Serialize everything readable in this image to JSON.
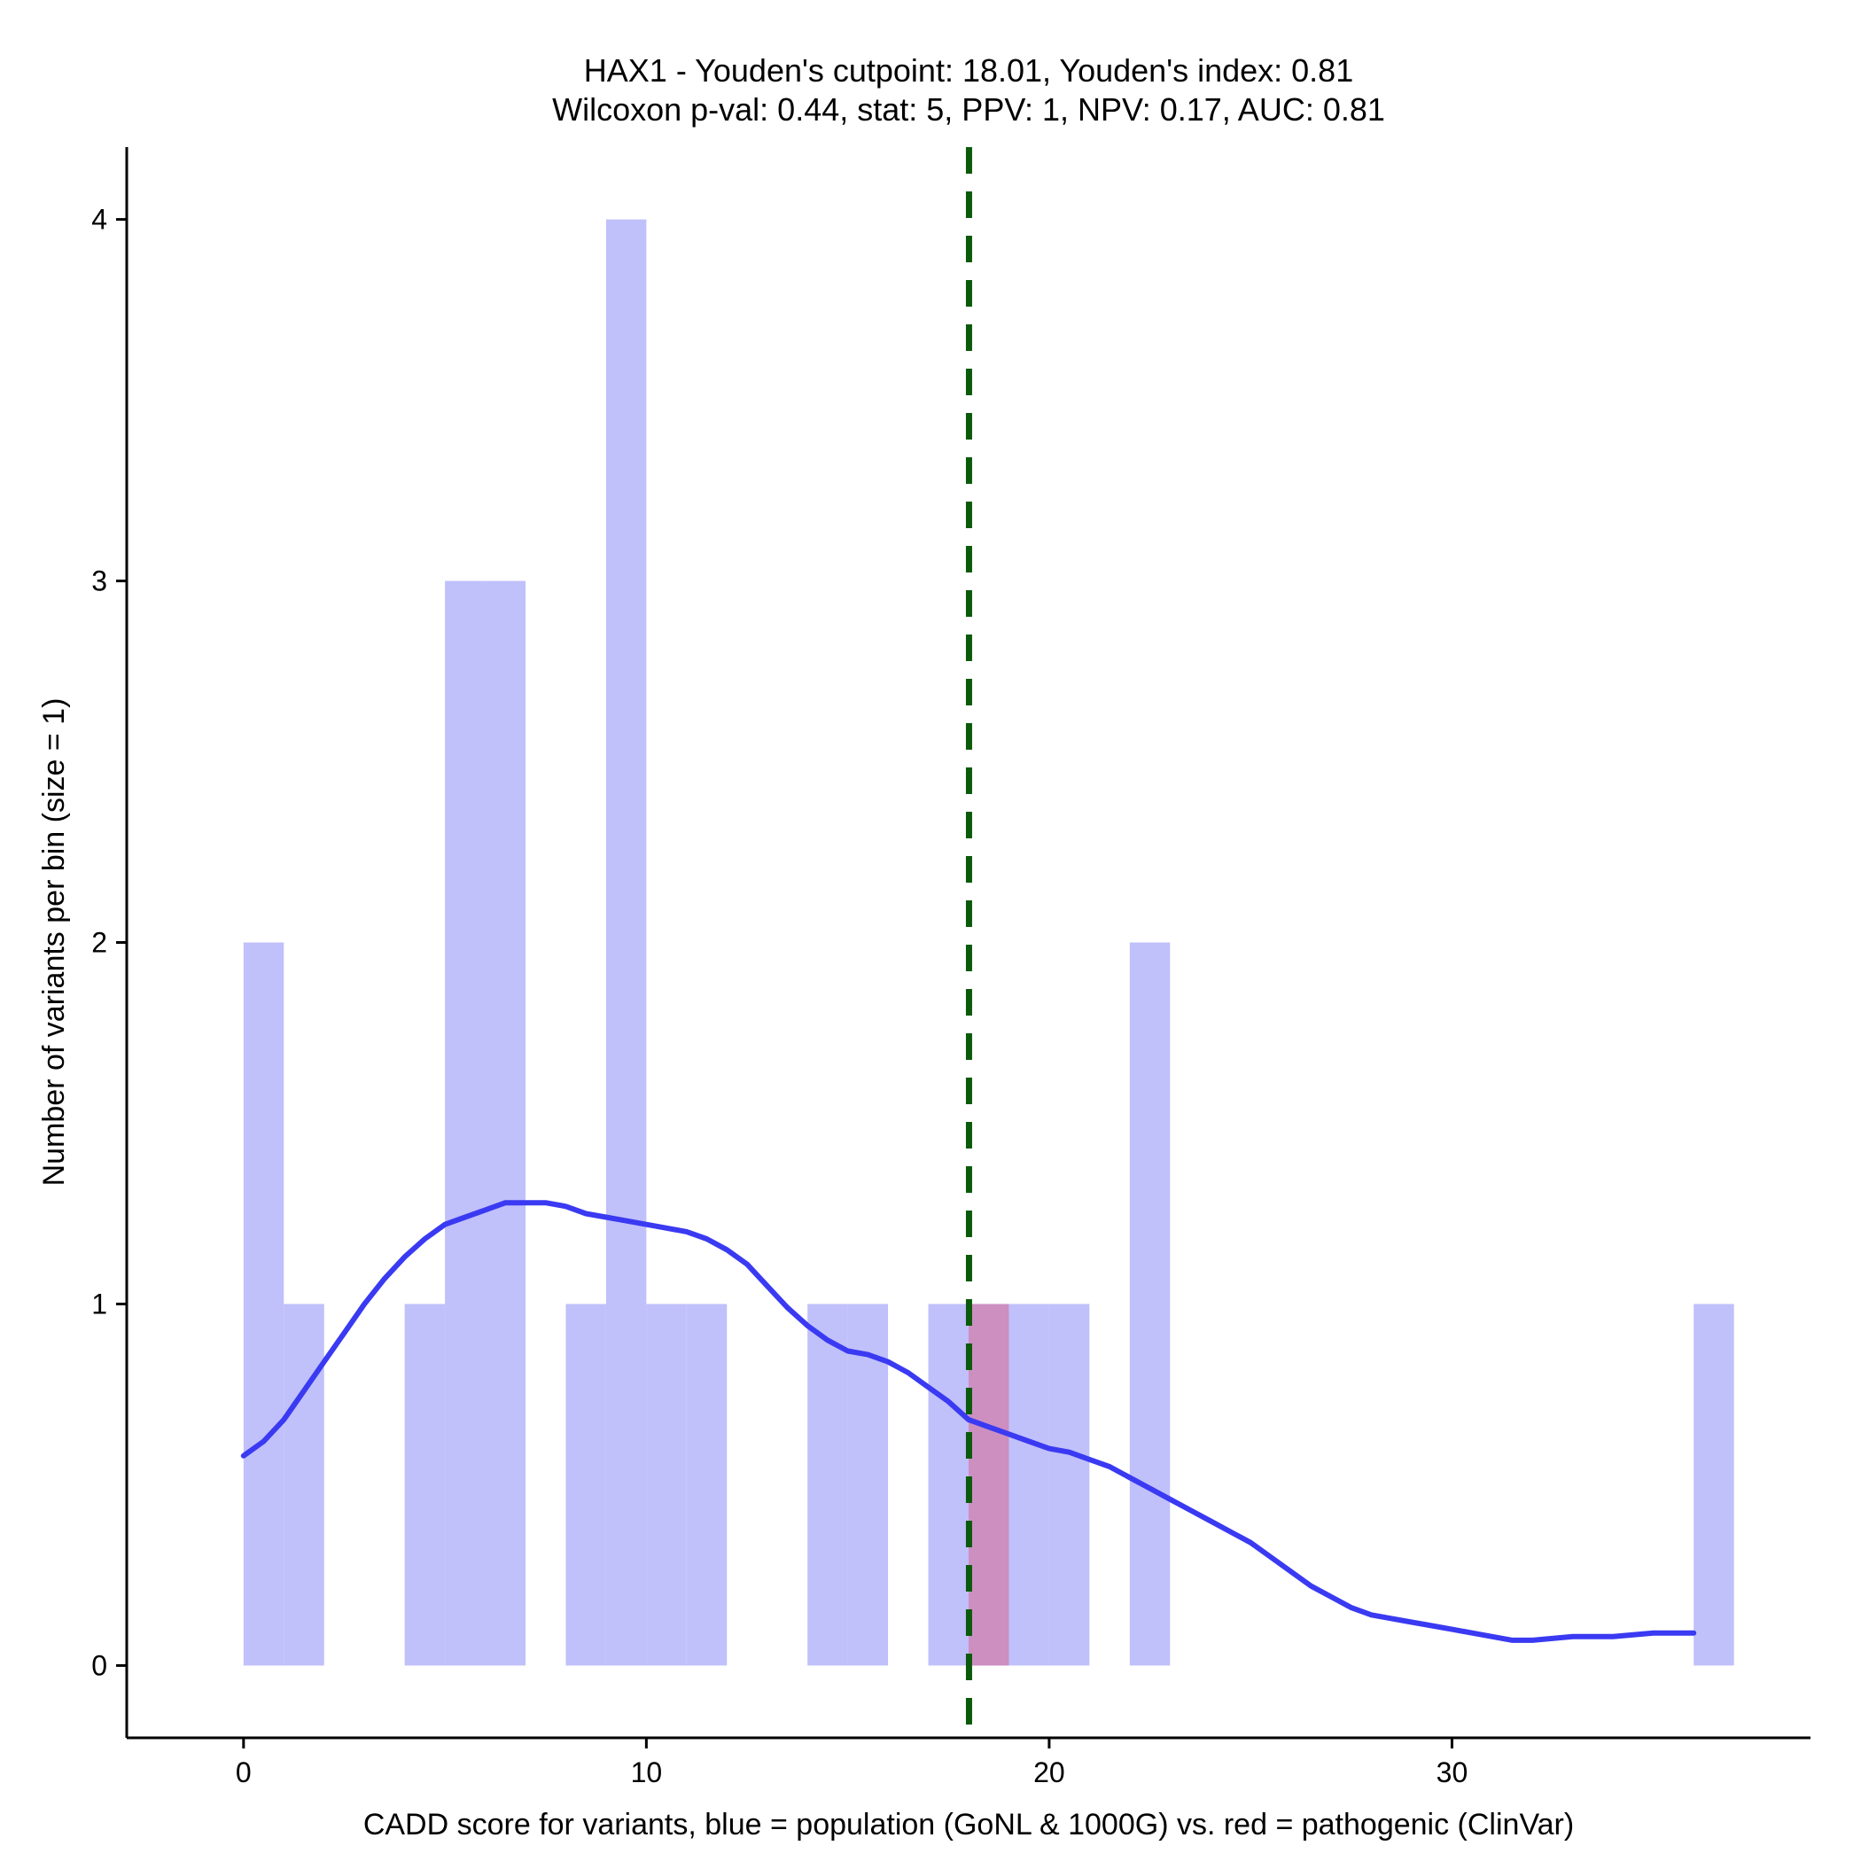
{
  "chart_data": {
    "type": "histogram",
    "title": "HAX1 - Youden's cutpoint: 18.01, Youden's index: 0.81",
    "subtitle": "Wilcoxon p-val: 0.44, stat: 5, PPV: 1, NPV: 0.17, AUC: 0.81",
    "xlabel": "CADD score for variants, blue = population (GoNL & 1000G) vs. red = pathogenic (ClinVar)",
    "ylabel": "Number of variants per bin (size = 1)",
    "xlim": [
      -2.9,
      38.9
    ],
    "ylim": [
      -0.2,
      4.2
    ],
    "x_ticks": [
      0,
      10,
      20,
      30
    ],
    "y_ticks": [
      0,
      1,
      2,
      3,
      4
    ],
    "bin_size": 1,
    "colors": {
      "population": "#c0c0fb",
      "pathogenic": "#cc8fc0",
      "density": "#3a3af2",
      "cutpoint": "#0b5a0b"
    },
    "cutpoint": 18.01,
    "series": [
      {
        "name": "population",
        "bins": [
          {
            "start": 0,
            "count": 2
          },
          {
            "start": 1,
            "count": 1
          },
          {
            "start": 4,
            "count": 1
          },
          {
            "start": 5,
            "count": 3
          },
          {
            "start": 6,
            "count": 3
          },
          {
            "start": 8,
            "count": 1
          },
          {
            "start": 9,
            "count": 4
          },
          {
            "start": 10,
            "count": 1
          },
          {
            "start": 11,
            "count": 1
          },
          {
            "start": 14,
            "count": 1
          },
          {
            "start": 15,
            "count": 1
          },
          {
            "start": 17,
            "count": 1
          },
          {
            "start": 18,
            "count": 1
          },
          {
            "start": 19,
            "count": 1
          },
          {
            "start": 20,
            "count": 1
          },
          {
            "start": 22,
            "count": 2
          },
          {
            "start": 36,
            "count": 1
          }
        ]
      },
      {
        "name": "pathogenic",
        "bins": [
          {
            "start": 18,
            "count": 1
          }
        ]
      }
    ],
    "density_curve": {
      "name": "population density",
      "x": [
        0,
        0.5,
        1,
        1.5,
        2,
        2.5,
        3,
        3.5,
        4,
        4.5,
        5,
        5.5,
        6,
        6.5,
        7,
        7.5,
        8,
        8.5,
        9,
        9.5,
        10,
        10.5,
        11,
        11.5,
        12,
        12.5,
        13,
        13.5,
        14,
        14.5,
        15,
        15.5,
        16,
        16.5,
        17,
        17.5,
        18,
        18.5,
        19,
        19.5,
        20,
        20.5,
        21,
        21.5,
        22,
        22.5,
        23,
        23.5,
        24,
        24.5,
        25,
        25.5,
        26,
        26.5,
        27,
        27.5,
        28,
        28.5,
        29,
        29.5,
        30,
        30.5,
        31,
        31.5,
        32,
        33,
        34,
        35,
        36
      ],
      "y": [
        0.58,
        0.62,
        0.68,
        0.76,
        0.84,
        0.92,
        1.0,
        1.07,
        1.13,
        1.18,
        1.22,
        1.24,
        1.26,
        1.28,
        1.28,
        1.28,
        1.27,
        1.25,
        1.24,
        1.23,
        1.22,
        1.21,
        1.2,
        1.18,
        1.15,
        1.11,
        1.05,
        0.99,
        0.94,
        0.9,
        0.87,
        0.86,
        0.84,
        0.81,
        0.77,
        0.73,
        0.68,
        0.66,
        0.64,
        0.62,
        0.6,
        0.59,
        0.57,
        0.55,
        0.52,
        0.49,
        0.46,
        0.43,
        0.4,
        0.37,
        0.34,
        0.3,
        0.26,
        0.22,
        0.19,
        0.16,
        0.14,
        0.13,
        0.12,
        0.11,
        0.1,
        0.09,
        0.08,
        0.07,
        0.07,
        0.08,
        0.08,
        0.09,
        0.09
      ]
    }
  }
}
